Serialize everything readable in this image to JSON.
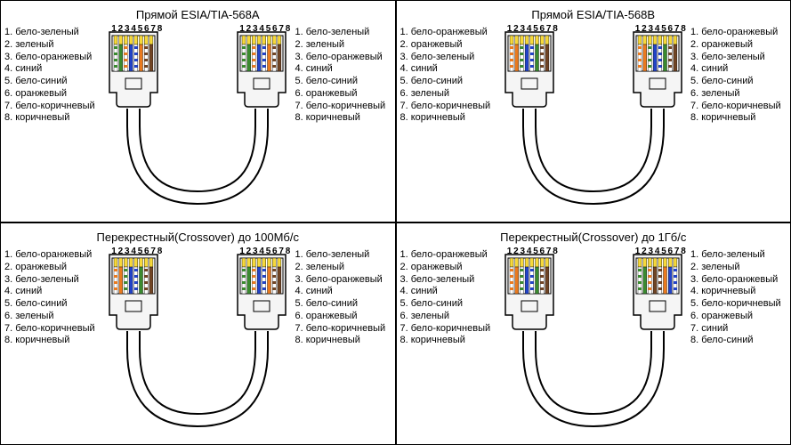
{
  "structure_type": "infographic",
  "wire_colors": {
    "green": "#3a8a2f",
    "white_green_stripe": "#3a8a2f",
    "orange": "#ea7a1e",
    "white_orange_stripe": "#ea7a1e",
    "blue": "#2243c8",
    "white_blue_stripe": "#2243c8",
    "brown": "#704424",
    "white_brown_stripe": "#704424",
    "base_white": "#ffffff"
  },
  "plug": {
    "body_fill": "#f5f5f5",
    "body_stroke": "#000000",
    "contact_bg": "#ffffff",
    "pin_gold": "#f7d93a",
    "pin_numbers": "12345678"
  },
  "cable_stroke": "#000000",
  "panels": [
    {
      "title": "Прямой ESIA/TIA-568A",
      "left_labels": [
        "1. бело-зеленый",
        "2. зеленый",
        "3. бело-оранжевый",
        "4. синий",
        "5. бело-синий",
        "6. оранжевый",
        "7. бело-коричневый",
        "8. коричневый"
      ],
      "right_labels": [
        "1. бело-зеленый",
        "2. зеленый",
        "3. бело-оранжевый",
        "4. синий",
        "5. бело-синий",
        "6. оранжевый",
        "7. бело-коричневый",
        "8. коричневый"
      ],
      "left_wires": [
        "wg",
        "g",
        "wo",
        "bl",
        "wbl",
        "o",
        "wb",
        "b"
      ],
      "right_wires": [
        "wg",
        "g",
        "wo",
        "bl",
        "wbl",
        "o",
        "wb",
        "b"
      ]
    },
    {
      "title": "Прямой ESIA/TIA-568B",
      "left_labels": [
        "1. бело-оранжевый",
        "2. оранжевый",
        "3. бело-зеленый",
        "4. синий",
        "5. бело-синий",
        "6. зеленый",
        "7. бело-коричневый",
        "8. коричневый"
      ],
      "right_labels": [
        "1. бело-оранжевый",
        "2. оранжевый",
        "3. бело-зеленый",
        "4. синий",
        "5. бело-синий",
        "6. зеленый",
        "7. бело-коричневый",
        "8. коричневый"
      ],
      "left_wires": [
        "wo",
        "o",
        "wg",
        "bl",
        "wbl",
        "g",
        "wb",
        "b"
      ],
      "right_wires": [
        "wo",
        "o",
        "wg",
        "bl",
        "wbl",
        "g",
        "wb",
        "b"
      ]
    },
    {
      "title": "Перекрестный(Crossover) до 100Мб/с",
      "left_labels": [
        "1. бело-оранжевый",
        "2. оранжевый",
        "3. бело-зеленый",
        "4. синий",
        "5. бело-синий",
        "6. зеленый",
        "7. бело-коричневый",
        "8. коричневый"
      ],
      "right_labels": [
        "1. бело-зеленый",
        "2. зеленый",
        "3. бело-оранжевый",
        "4. синий",
        "5. бело-синий",
        "6. оранжевый",
        "7. бело-коричневый",
        "8. коричневый"
      ],
      "left_wires": [
        "wo",
        "o",
        "wg",
        "bl",
        "wbl",
        "g",
        "wb",
        "b"
      ],
      "right_wires": [
        "wg",
        "g",
        "wo",
        "bl",
        "wbl",
        "o",
        "wb",
        "b"
      ]
    },
    {
      "title": "Перекрестный(Crossover) до 1Гб/с",
      "left_labels": [
        "1. бело-оранжевый",
        "2. оранжевый",
        "3. бело-зеленый",
        "4. синий",
        "5. бело-синий",
        "6. зеленый",
        "7. бело-коричневый",
        "8. коричневый"
      ],
      "right_labels": [
        "1. бело-зеленый",
        "2. зеленый",
        "3. бело-оранжевый",
        "4. коричневый",
        "5. бело-коричневый",
        "6. оранжевый",
        "7. синий",
        "8. бело-синий"
      ],
      "left_wires": [
        "wo",
        "o",
        "wg",
        "bl",
        "wbl",
        "g",
        "wb",
        "b"
      ],
      "right_wires": [
        "wg",
        "g",
        "wo",
        "b",
        "wb",
        "o",
        "bl",
        "wbl"
      ]
    }
  ],
  "wire_code_map": {
    "wg": {
      "type": "stripe",
      "color": "green"
    },
    "g": {
      "type": "solid",
      "color": "green"
    },
    "wo": {
      "type": "stripe",
      "color": "orange"
    },
    "o": {
      "type": "solid",
      "color": "orange"
    },
    "wbl": {
      "type": "stripe",
      "color": "blue"
    },
    "bl": {
      "type": "solid",
      "color": "blue"
    },
    "wb": {
      "type": "stripe",
      "color": "brown"
    },
    "b": {
      "type": "solid",
      "color": "brown"
    }
  }
}
